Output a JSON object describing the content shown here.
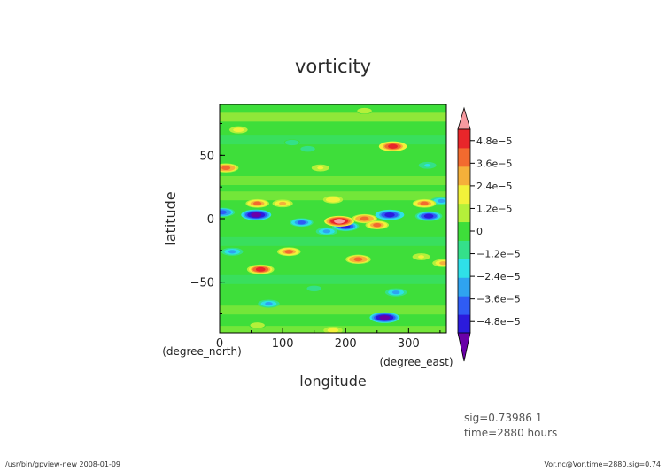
{
  "chart_data": {
    "type": "heatmap",
    "title": "vorticity",
    "xlabel": "longitude",
    "ylabel": "latitude",
    "x_units": "(degree_east)",
    "y_units": "(degree_north)",
    "xlim": [
      0,
      360
    ],
    "ylim": [
      -90,
      90
    ],
    "x_ticks": [
      "0",
      "100",
      "200",
      "300"
    ],
    "y_ticks": [
      "50",
      "0",
      "−50"
    ],
    "colorbar": {
      "ticks": [
        "4.8e−5",
        "3.6e−5",
        "2.4e−5",
        "1.2e−5",
        "0",
        "−1.2e−5",
        "−2.4e−5",
        "−3.6e−5",
        "−4.8e−5"
      ],
      "tick_values": [
        4.8e-05,
        3.6e-05,
        2.4e-05,
        1.2e-05,
        0,
        -1.2e-05,
        -2.4e-05,
        -3.6e-05,
        -4.8e-05
      ],
      "range": [
        -5.4e-05,
        5.4e-05
      ],
      "colors": [
        "#6a00a8",
        "#2b1bdc",
        "#2f5cf5",
        "#2fa3f0",
        "#2fe0e8",
        "#34e08a",
        "#3ede3a",
        "#b4f03a",
        "#f2f23a",
        "#f5b03a",
        "#f26a2f",
        "#e8262a",
        "#f79aa0"
      ]
    },
    "field_features": [
      {
        "lon": 262,
        "lat": -78,
        "value": -4.8e-05
      },
      {
        "lon": 58,
        "lat": 3,
        "value": -4.8e-05
      },
      {
        "lon": 270,
        "lat": 3,
        "value": -4.5e-05
      },
      {
        "lon": 200,
        "lat": -6,
        "value": -4e-05
      },
      {
        "lon": 332,
        "lat": 2,
        "value": -4e-05
      },
      {
        "lon": 4,
        "lat": 5,
        "value": -3.5e-05
      },
      {
        "lon": 280,
        "lat": -58,
        "value": -2.5e-05
      },
      {
        "lon": 78,
        "lat": -67,
        "value": -2.5e-05
      },
      {
        "lon": 130,
        "lat": -3,
        "value": -3e-05
      },
      {
        "lon": 20,
        "lat": -26,
        "value": -2.5e-05
      },
      {
        "lon": 352,
        "lat": 14,
        "value": -2.5e-05
      },
      {
        "lon": 170,
        "lat": -10,
        "value": -2.5e-05
      },
      {
        "lon": 275,
        "lat": 57,
        "value": 4.2e-05
      },
      {
        "lon": 10,
        "lat": 40,
        "value": 3.5e-05
      },
      {
        "lon": 190,
        "lat": -2,
        "value": 4.8e-05
      },
      {
        "lon": 230,
        "lat": 0,
        "value": 3.5e-05
      },
      {
        "lon": 250,
        "lat": -5,
        "value": 3e-05
      },
      {
        "lon": 65,
        "lat": -40,
        "value": 4e-05
      },
      {
        "lon": 220,
        "lat": -32,
        "value": 3.5e-05
      },
      {
        "lon": 110,
        "lat": -26,
        "value": 3e-05
      },
      {
        "lon": 60,
        "lat": 12,
        "value": 3e-05
      },
      {
        "lon": 325,
        "lat": 12,
        "value": 3e-05
      },
      {
        "lon": 355,
        "lat": -35,
        "value": 2.5e-05
      },
      {
        "lon": 180,
        "lat": 15,
        "value": 2e-05
      },
      {
        "lon": 100,
        "lat": 12,
        "value": 2.2e-05
      },
      {
        "lon": 30,
        "lat": 70,
        "value": 1.6e-05
      },
      {
        "lon": 160,
        "lat": 40,
        "value": 1.4e-05
      },
      {
        "lon": 230,
        "lat": 85,
        "value": 1.2e-05
      },
      {
        "lon": 180,
        "lat": -88,
        "value": 1.8e-05
      },
      {
        "lon": 60,
        "lat": -84,
        "value": 1.2e-05
      },
      {
        "lon": 320,
        "lat": -30,
        "value": 1.4e-05
      },
      {
        "lon": 330,
        "lat": 42,
        "value": -1.4e-05
      },
      {
        "lon": 140,
        "lat": 55,
        "value": -1.2e-05
      },
      {
        "lon": 115,
        "lat": 60,
        "value": -1e-05
      },
      {
        "lon": 150,
        "lat": -55,
        "value": -1.2e-05
      }
    ]
  },
  "info": {
    "line1": "sig=0.73986  1",
    "line2": "time=2880  hours"
  },
  "footer": {
    "left": "/usr/bin/gpview-new   2008-01-09",
    "right": "Vor.nc@Vor,time=2880,sig=0.74"
  }
}
